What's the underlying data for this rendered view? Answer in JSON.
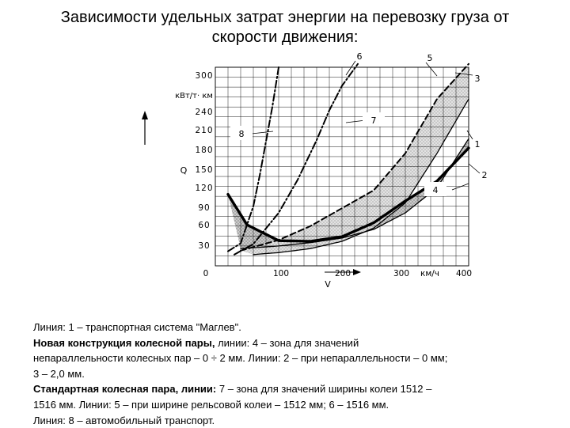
{
  "title": {
    "line1": "Зависимости удельных затрат энергии на перевозку груза от",
    "line2": "скорости движения:"
  },
  "chart_data": {
    "type": "line",
    "title": "Зависимости удельных затрат энергии на перевозку груза от скорости движения:",
    "ylabel": "Q",
    "yunit": "кВт/т· км",
    "xlabel": "V",
    "xunit": "км/ч",
    "xlim": [
      0,
      400
    ],
    "ylim": [
      0,
      300
    ],
    "y_ticks": [
      "30",
      "60",
      "90",
      "120",
      "150",
      "180",
      "210",
      "240",
      "300"
    ],
    "x_ticks": [
      "0",
      "100",
      "200",
      "300",
      "400"
    ],
    "grid": true,
    "series": [
      {
        "name": "1",
        "style": "thick-solid",
        "x": [
          20,
          50,
          100,
          150,
          200,
          250,
          300,
          350,
          400
        ],
        "y": [
          108,
          62,
          38,
          37,
          44,
          65,
          98,
          128,
          178
        ]
      },
      {
        "name": "2",
        "style": "solid",
        "x": [
          40,
          100,
          150,
          200,
          250,
          300,
          350,
          400
        ],
        "y": [
          26,
          30,
          35,
          42,
          55,
          80,
          118,
          192
        ]
      },
      {
        "name": "3",
        "style": "solid",
        "x": [
          60,
          100,
          150,
          200,
          250,
          300,
          350,
          400
        ],
        "y": [
          17,
          20,
          26,
          37,
          57,
          95,
          170,
          252
        ]
      },
      {
        "name": "5",
        "style": "dashed",
        "x": [
          40,
          100,
          150,
          200,
          250,
          300,
          350,
          400
        ],
        "y": [
          23,
          39,
          60,
          87,
          114,
          170,
          252,
          305
        ]
      },
      {
        "name": "6",
        "style": "dash-dot",
        "x": [
          30,
          60,
          100,
          130,
          160,
          180,
          200,
          225
        ],
        "y": [
          17,
          33,
          80,
          130,
          190,
          235,
          272,
          305
        ]
      },
      {
        "name": "8",
        "style": "dash-dot",
        "x": [
          20,
          40,
          60,
          70,
          80,
          90,
          100
        ],
        "y": [
          22,
          34,
          90,
          136,
          188,
          240,
          300
        ]
      }
    ],
    "zones": [
      {
        "name": "4",
        "between": [
          "2",
          "1"
        ],
        "fill": "dotted"
      },
      {
        "name": "7",
        "between": [
          "3",
          "5"
        ],
        "fill": "light-dotted"
      }
    ],
    "callouts": [
      "6",
      "5",
      "3",
      "7",
      "8",
      "1",
      "2",
      "4"
    ]
  },
  "caption": {
    "l1a": "Линия: 1 – транспортная система \"Маглев\".",
    "l2b": "Новая конструкция колесной пары,",
    "l2a": " линии: 4 – зона для значений",
    "l3a": "непараллельности колесных пар – 0 ÷ 2 мм. Линии: 2 – при непараллельности – 0 мм;",
    "l4a": "3 – 2,0 мм.",
    "l5b": "Стандартная колесная пара, линии:",
    "l5a": " 7 – зона для значений ширины колеи 1512 –",
    "l6a": "1516 мм. Линии: 5 – при ширине рельсовой колеи – 1512 мм;   6 – 1516 мм.",
    "l7a": "Линия: 8 – автомобильный транспорт."
  },
  "colors": {
    "ink": "#000000",
    "zone_dark": "#9a9a9a",
    "zone_light": "#d6d6d6",
    "grid": "#000000"
  }
}
